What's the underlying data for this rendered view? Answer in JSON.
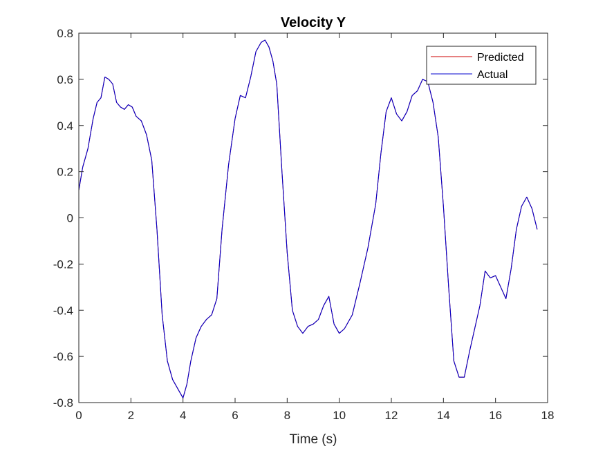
{
  "chart_data": {
    "type": "line",
    "title": "Velocity Y",
    "xlabel": "Time (s)",
    "ylabel": "",
    "xlim": [
      0,
      18
    ],
    "ylim": [
      -0.8,
      0.8
    ],
    "xticks": [
      0,
      2,
      4,
      6,
      8,
      10,
      12,
      14,
      16,
      18
    ],
    "xtick_labels": [
      "0",
      "2",
      "4",
      "6",
      "8",
      "10",
      "12",
      "14",
      "16",
      "18"
    ],
    "yticks": [
      -0.8,
      -0.6,
      -0.4,
      -0.2,
      0,
      0.2,
      0.4,
      0.6,
      0.8
    ],
    "ytick_labels": [
      "-0.8",
      "-0.6",
      "-0.4",
      "-0.2",
      "0",
      "0.2",
      "0.4",
      "0.6",
      "0.8"
    ],
    "grid": false,
    "legend_position": "top-right",
    "series": [
      {
        "name": "Predicted",
        "color": "#cc0000",
        "x": [
          0,
          0.15,
          0.35,
          0.55,
          0.7,
          0.85,
          1.0,
          1.15,
          1.3,
          1.45,
          1.6,
          1.75,
          1.9,
          2.05,
          2.2,
          2.4,
          2.6,
          2.8,
          3.0,
          3.2,
          3.4,
          3.6,
          3.8,
          4.0,
          4.15,
          4.3,
          4.5,
          4.7,
          4.9,
          5.1,
          5.3,
          5.5,
          5.75,
          6.0,
          6.2,
          6.4,
          6.6,
          6.8,
          7.0,
          7.15,
          7.3,
          7.45,
          7.6,
          7.8,
          8.0,
          8.2,
          8.4,
          8.6,
          8.8,
          9.0,
          9.2,
          9.4,
          9.6,
          9.8,
          10.0,
          10.2,
          10.5,
          10.8,
          11.1,
          11.4,
          11.6,
          11.8,
          12.0,
          12.2,
          12.4,
          12.6,
          12.8,
          13.0,
          13.2,
          13.4,
          13.6,
          13.8,
          14.0,
          14.2,
          14.4,
          14.6,
          14.8,
          15.0,
          15.2,
          15.4,
          15.6,
          15.8,
          16.0,
          16.2,
          16.4,
          16.6,
          16.8,
          17.0,
          17.2,
          17.4,
          17.6
        ],
        "y": [
          0.12,
          0.22,
          0.3,
          0.43,
          0.5,
          0.52,
          0.61,
          0.6,
          0.58,
          0.5,
          0.48,
          0.47,
          0.49,
          0.48,
          0.44,
          0.42,
          0.36,
          0.25,
          -0.05,
          -0.42,
          -0.62,
          -0.7,
          -0.74,
          -0.78,
          -0.72,
          -0.62,
          -0.52,
          -0.47,
          -0.44,
          -0.42,
          -0.35,
          -0.05,
          0.23,
          0.43,
          0.53,
          0.52,
          0.61,
          0.72,
          0.76,
          0.77,
          0.74,
          0.68,
          0.58,
          0.2,
          -0.15,
          -0.4,
          -0.47,
          -0.5,
          -0.47,
          -0.46,
          -0.44,
          -0.38,
          -0.34,
          -0.46,
          -0.5,
          -0.48,
          -0.42,
          -0.28,
          -0.13,
          0.06,
          0.28,
          0.46,
          0.52,
          0.45,
          0.42,
          0.46,
          0.53,
          0.55,
          0.6,
          0.59,
          0.5,
          0.35,
          0.05,
          -0.3,
          -0.62,
          -0.69,
          -0.69,
          -0.58,
          -0.48,
          -0.38,
          -0.23,
          -0.26,
          -0.25,
          -0.3,
          -0.35,
          -0.22,
          -0.05,
          0.05,
          0.09,
          0.04,
          -0.05
        ]
      },
      {
        "name": "Actual",
        "color": "#0000cc",
        "x": [
          0,
          0.15,
          0.35,
          0.55,
          0.7,
          0.85,
          1.0,
          1.15,
          1.3,
          1.45,
          1.6,
          1.75,
          1.9,
          2.05,
          2.2,
          2.4,
          2.6,
          2.8,
          3.0,
          3.2,
          3.4,
          3.6,
          3.8,
          4.0,
          4.15,
          4.3,
          4.5,
          4.7,
          4.9,
          5.1,
          5.3,
          5.5,
          5.75,
          6.0,
          6.2,
          6.4,
          6.6,
          6.8,
          7.0,
          7.15,
          7.3,
          7.45,
          7.6,
          7.8,
          8.0,
          8.2,
          8.4,
          8.6,
          8.8,
          9.0,
          9.2,
          9.4,
          9.6,
          9.8,
          10.0,
          10.2,
          10.5,
          10.8,
          11.1,
          11.4,
          11.6,
          11.8,
          12.0,
          12.2,
          12.4,
          12.6,
          12.8,
          13.0,
          13.2,
          13.4,
          13.6,
          13.8,
          14.0,
          14.2,
          14.4,
          14.6,
          14.8,
          15.0,
          15.2,
          15.4,
          15.6,
          15.8,
          16.0,
          16.2,
          16.4,
          16.6,
          16.8,
          17.0,
          17.2,
          17.4,
          17.6
        ],
        "y": [
          0.12,
          0.22,
          0.3,
          0.43,
          0.5,
          0.52,
          0.61,
          0.6,
          0.58,
          0.5,
          0.48,
          0.47,
          0.49,
          0.48,
          0.44,
          0.42,
          0.36,
          0.25,
          -0.05,
          -0.42,
          -0.62,
          -0.7,
          -0.74,
          -0.78,
          -0.72,
          -0.62,
          -0.52,
          -0.47,
          -0.44,
          -0.42,
          -0.35,
          -0.05,
          0.23,
          0.43,
          0.53,
          0.52,
          0.61,
          0.72,
          0.76,
          0.77,
          0.74,
          0.68,
          0.58,
          0.2,
          -0.15,
          -0.4,
          -0.47,
          -0.5,
          -0.47,
          -0.46,
          -0.44,
          -0.38,
          -0.34,
          -0.46,
          -0.5,
          -0.48,
          -0.42,
          -0.28,
          -0.13,
          0.06,
          0.28,
          0.46,
          0.52,
          0.45,
          0.42,
          0.46,
          0.53,
          0.55,
          0.6,
          0.59,
          0.5,
          0.35,
          0.05,
          -0.3,
          -0.62,
          -0.69,
          -0.69,
          -0.58,
          -0.48,
          -0.38,
          -0.23,
          -0.26,
          -0.25,
          -0.3,
          -0.35,
          -0.22,
          -0.05,
          0.05,
          0.09,
          0.04,
          -0.05
        ]
      }
    ]
  }
}
